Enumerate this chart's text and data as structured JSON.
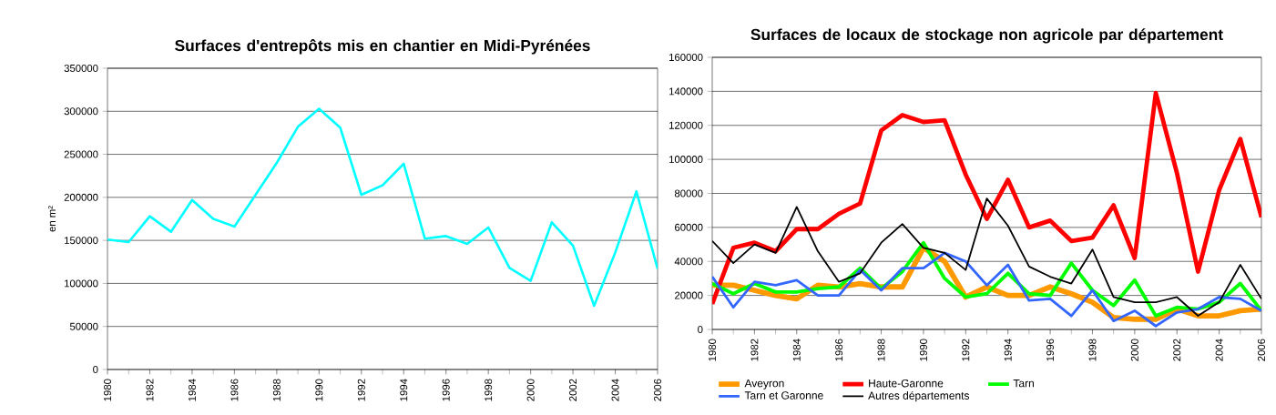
{
  "chart_data": [
    {
      "type": "line",
      "title": "Surfaces d'entrepôts mis en chantier en Midi-Pyrénées",
      "ylabel": "en m²",
      "x": [
        1980,
        1981,
        1982,
        1983,
        1984,
        1985,
        1986,
        1987,
        1988,
        1989,
        1990,
        1991,
        1992,
        1993,
        1994,
        1995,
        1996,
        1997,
        1998,
        1999,
        2000,
        2001,
        2002,
        2003,
        2004,
        2005,
        2006
      ],
      "values": [
        151000,
        148000,
        178000,
        160000,
        197000,
        175000,
        166000,
        203000,
        240000,
        282000,
        303000,
        281000,
        203000,
        214000,
        239000,
        152000,
        155000,
        146000,
        165000,
        118000,
        103000,
        171000,
        144000,
        74000,
        136000,
        207000,
        117000
      ],
      "color": "#00ffff",
      "xlim": [
        1980,
        2006
      ],
      "xticks": [
        1980,
        1982,
        1984,
        1986,
        1988,
        1990,
        1992,
        1994,
        1996,
        1998,
        2000,
        2002,
        2004,
        2006
      ],
      "ylim": [
        0,
        350000
      ],
      "yticks": [
        0,
        50000,
        100000,
        150000,
        200000,
        250000,
        300000,
        350000
      ],
      "grid": "y",
      "legend": false
    },
    {
      "type": "line",
      "title": "Surfaces de locaux de stockage non agricole par département",
      "x": [
        1980,
        1981,
        1982,
        1983,
        1984,
        1985,
        1986,
        1987,
        1988,
        1989,
        1990,
        1991,
        1992,
        1993,
        1994,
        1995,
        1996,
        1997,
        1998,
        1999,
        2000,
        2001,
        2002,
        2003,
        2004,
        2005,
        2006
      ],
      "series": [
        {
          "name": "Aveyron",
          "color": "#ff9900",
          "values": [
            26000,
            26000,
            23000,
            20000,
            18000,
            26000,
            25000,
            27000,
            25000,
            25000,
            48000,
            40000,
            19000,
            25000,
            20000,
            20000,
            25000,
            21000,
            16000,
            7000,
            6000,
            6000,
            12000,
            8000,
            8000,
            11000,
            12000
          ]
        },
        {
          "name": "Haute-Garonne",
          "color": "#ff0000",
          "values": [
            15000,
            48000,
            51000,
            46000,
            59000,
            59000,
            68000,
            74000,
            117000,
            126000,
            122000,
            123000,
            91000,
            65000,
            88000,
            60000,
            64000,
            52000,
            54000,
            73000,
            42000,
            139000,
            92000,
            34000,
            82000,
            112000,
            66000
          ]
        },
        {
          "name": "Tarn",
          "color": "#00ff00",
          "values": [
            27000,
            21000,
            27000,
            22000,
            22000,
            24000,
            25000,
            36000,
            24000,
            34000,
            51000,
            30000,
            19000,
            21000,
            33000,
            21000,
            20000,
            39000,
            23000,
            14000,
            29000,
            8000,
            13000,
            12000,
            16000,
            27000,
            11000
          ]
        },
        {
          "name": "Tarn et Garonne",
          "color": "#3366ff",
          "values": [
            31000,
            13000,
            28000,
            26000,
            29000,
            20000,
            20000,
            35000,
            23000,
            36000,
            36000,
            45000,
            40000,
            26000,
            38000,
            17000,
            18000,
            8000,
            23000,
            5000,
            11000,
            2000,
            10000,
            12000,
            19000,
            18000,
            11000
          ]
        },
        {
          "name": "Autres départements",
          "color": "#000000",
          "values": [
            52000,
            39000,
            50000,
            45000,
            72000,
            46000,
            28000,
            33000,
            51000,
            62000,
            48000,
            45000,
            35000,
            77000,
            61000,
            37000,
            31000,
            27000,
            47000,
            19000,
            16000,
            16000,
            19000,
            8000,
            16000,
            38000,
            18000
          ]
        }
      ],
      "xlim": [
        1980,
        2006
      ],
      "xticks": [
        1980,
        1982,
        1984,
        1986,
        1988,
        1990,
        1992,
        1994,
        1996,
        1998,
        2000,
        2002,
        2004,
        2006
      ],
      "ylim": [
        0,
        160000
      ],
      "yticks": [
        0,
        20000,
        40000,
        60000,
        80000,
        100000,
        120000,
        140000,
        160000
      ],
      "grid": "y",
      "legend": "bottom"
    }
  ]
}
